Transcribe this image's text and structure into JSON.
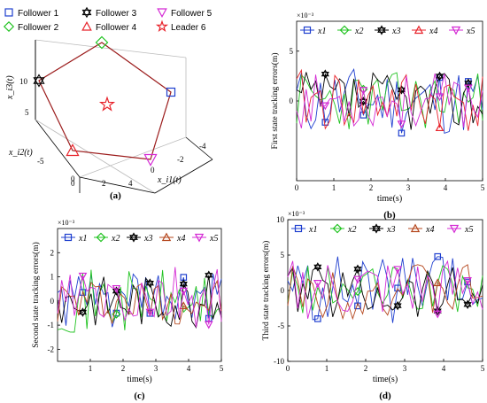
{
  "panel_a": {
    "legend": [
      {
        "name": "Follower 1",
        "marker": "square",
        "color": "#1f3fcf"
      },
      {
        "name": "Follower 3",
        "marker": "hexstar",
        "color": "#000000"
      },
      {
        "name": "Follower 5",
        "marker": "tri-down",
        "color": "#d42ad4"
      },
      {
        "name": "Follower 2",
        "marker": "diamond",
        "color": "#21c321"
      },
      {
        "name": "Follower 4",
        "marker": "tri-up",
        "color": "#e8232b"
      },
      {
        "name": "Leader 6",
        "marker": "star",
        "color": "#e8232b"
      }
    ],
    "ylabel": "x_i3(t)",
    "xlabel_left": "x_i2(t)",
    "xlabel_right": "x_i1(t)",
    "ticks_i3": [
      "10",
      "5"
    ],
    "ticks_i2": [
      "-5",
      "0"
    ],
    "ticks_i2_bottom": [
      "0",
      "2",
      "4"
    ],
    "ticks_i1": [
      "0",
      "-2",
      "-4"
    ],
    "tag": "(a)"
  },
  "chart_data": [
    {
      "type": "line",
      "panel": "b",
      "ylabel": "First state tracking errors(m)",
      "xlabel": "time(s)",
      "exponent": "×10⁻³",
      "xlim": [
        0,
        5
      ],
      "ylim": [
        -8,
        8
      ],
      "xticks": [
        "0",
        "1",
        "2",
        "3",
        "4",
        "5"
      ],
      "yticks": [
        "0",
        "5"
      ],
      "series": [
        {
          "name": "x1",
          "color": "#1f3fcf",
          "marker": "square"
        },
        {
          "name": "x2",
          "color": "#21c321",
          "marker": "diamond"
        },
        {
          "name": "x3",
          "color": "#000000",
          "marker": "hexstar"
        },
        {
          "name": "x4",
          "color": "#e8232b",
          "marker": "tri-up"
        },
        {
          "name": "x5",
          "color": "#d42ad4",
          "marker": "tri-down"
        }
      ],
      "tag": "(b)"
    },
    {
      "type": "line",
      "panel": "c",
      "ylabel": "Second state tracking errors(m)",
      "xlabel": "time(s)",
      "exponent": "×10⁻³",
      "xlim": [
        0,
        5
      ],
      "ylim": [
        -2.5,
        3
      ],
      "xticks": [
        "1",
        "2",
        "3",
        "4",
        "5"
      ],
      "yticks": [
        "2",
        "1",
        "0",
        "-1",
        "-2"
      ],
      "series": [
        {
          "name": "x1",
          "color": "#1f3fcf",
          "marker": "square"
        },
        {
          "name": "x2",
          "color": "#21c321",
          "marker": "diamond"
        },
        {
          "name": "x3",
          "color": "#000000",
          "marker": "hexstar"
        },
        {
          "name": "x4",
          "color": "#b5471e",
          "marker": "tri-up"
        },
        {
          "name": "x5",
          "color": "#d42ad4",
          "marker": "tri-down"
        }
      ],
      "tag": "(c)"
    },
    {
      "type": "line",
      "panel": "d",
      "ylabel": "Third state tracking errors(m)",
      "xlabel": "time(s)",
      "exponent": "×10⁻³",
      "xlim": [
        0,
        5
      ],
      "ylim": [
        -10,
        10
      ],
      "xticks": [
        "0",
        "1",
        "2",
        "3",
        "4",
        "5"
      ],
      "yticks": [
        "10",
        "5",
        "0",
        "-5",
        "-10"
      ],
      "series": [
        {
          "name": "x1",
          "color": "#1f3fcf",
          "marker": "square"
        },
        {
          "name": "x2",
          "color": "#21c321",
          "marker": "diamond"
        },
        {
          "name": "x3",
          "color": "#000000",
          "marker": "hexstar"
        },
        {
          "name": "x4",
          "color": "#b5471e",
          "marker": "tri-up"
        },
        {
          "name": "x5",
          "color": "#d42ad4",
          "marker": "tri-down"
        }
      ],
      "tag": "(d)"
    }
  ]
}
